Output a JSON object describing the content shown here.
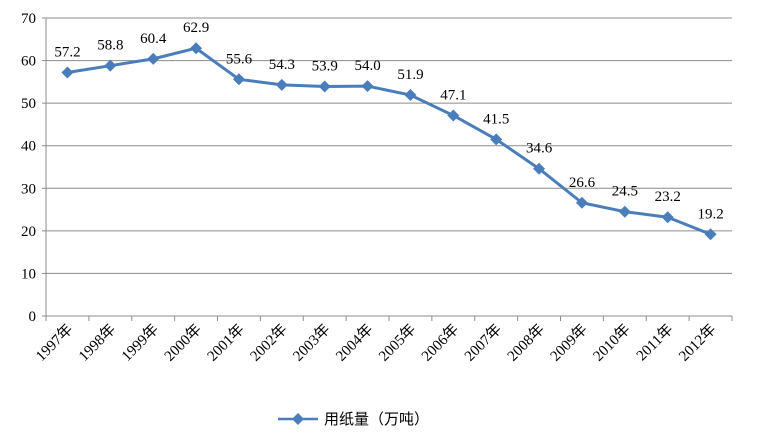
{
  "chart_data": {
    "type": "line",
    "categories": [
      "1997年",
      "1998年",
      "1999年",
      "2000年",
      "2001年",
      "2002年",
      "2003年",
      "2004年",
      "2005年",
      "2006年",
      "2007年",
      "2008年",
      "2009年",
      "2010年",
      "2011年",
      "2012年"
    ],
    "series": [
      {
        "name": "用纸量（万吨）",
        "values": [
          57.2,
          58.8,
          60.4,
          62.9,
          55.6,
          54.3,
          53.9,
          54.0,
          51.9,
          47.1,
          41.5,
          34.6,
          26.6,
          24.5,
          23.2,
          19.2
        ],
        "color": "#4a7ebb",
        "marker": "diamond"
      }
    ],
    "data_labels": [
      "57.2",
      "58.8",
      "60.4",
      "62.9",
      "55.6",
      "54.3",
      "53.9",
      "54.0",
      "51.9",
      "47.1",
      "41.5",
      "34.6",
      "26.6",
      "24.5",
      "23.2",
      "19.2"
    ],
    "y_ticks": [
      "0",
      "10",
      "20",
      "30",
      "40",
      "50",
      "60",
      "70"
    ],
    "ylim": [
      0,
      70
    ],
    "grid": true,
    "legend_position": "bottom"
  }
}
